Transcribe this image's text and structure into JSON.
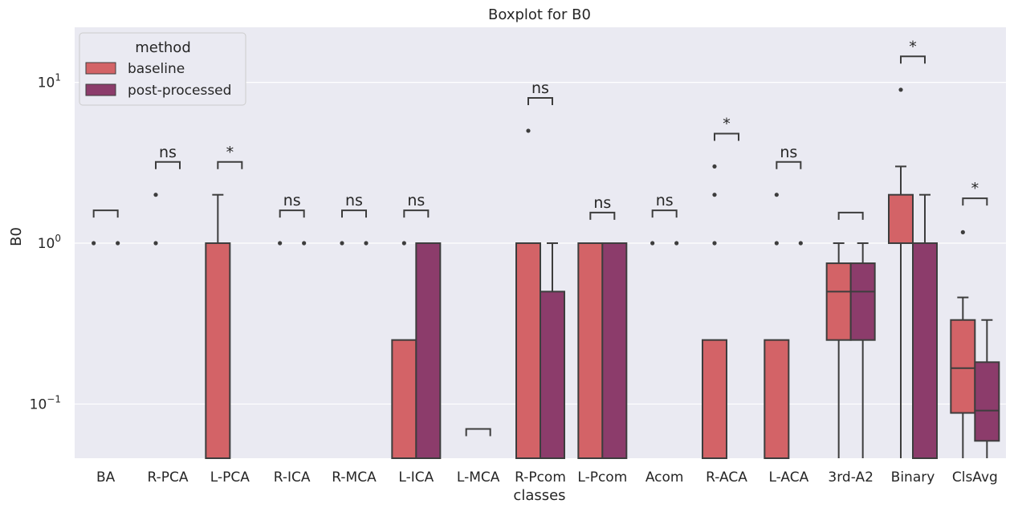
{
  "chart_data": {
    "type": "boxplot",
    "title": "Boxplot for B0",
    "xlabel": "classes",
    "ylabel": "B0",
    "yscale": "log",
    "ylim": [
      0.046,
      22
    ],
    "ytick_values": [
      0.1,
      1,
      10
    ],
    "ytick_bases": [
      "10",
      "10",
      "10"
    ],
    "ytick_exponents": [
      "−1",
      "0",
      "1"
    ],
    "grid": true,
    "legend": {
      "title": "method",
      "placement": "top-left",
      "entries": [
        "baseline",
        "post-processed"
      ]
    },
    "colors": {
      "baseline": "#d36367",
      "post-processed": "#8c3c6b",
      "background": "#eaeaf2",
      "grid": "#ffffff",
      "edge": "#3d3d3d"
    },
    "categories": [
      "BA",
      "R-PCA",
      "L-PCA",
      "R-ICA",
      "R-MCA",
      "L-ICA",
      "L-MCA",
      "R-Pcom",
      "L-Pcom",
      "Acom",
      "R-ACA",
      "L-ACA",
      "3rd-A2",
      "Binary",
      "ClsAvg"
    ],
    "series": [
      {
        "name": "baseline",
        "boxes": [
          {
            "fliers": [
              1
            ]
          },
          {
            "fliers": [
              1,
              2
            ]
          },
          {
            "q1": 0,
            "med": 0,
            "q3": 1,
            "wlo": 0,
            "whi": 2
          },
          {
            "fliers": [
              1
            ]
          },
          {
            "fliers": [
              1
            ]
          },
          {
            "q1": 0,
            "med": 0,
            "q3": 0.25,
            "wlo": 0,
            "whi": 0.25,
            "fliers": [
              1
            ]
          },
          {},
          {
            "q1": 0,
            "med": 0,
            "q3": 1,
            "wlo": 0,
            "whi": 1,
            "fliers": [
              5
            ]
          },
          {
            "q1": 0,
            "med": 1,
            "q3": 1,
            "wlo": 0,
            "whi": 1
          },
          {
            "fliers": [
              1
            ]
          },
          {
            "q1": 0,
            "med": 0,
            "q3": 0.25,
            "wlo": 0,
            "whi": 0.25,
            "fliers": [
              1,
              2,
              3
            ]
          },
          {
            "q1": 0,
            "med": 0,
            "q3": 0.25,
            "wlo": 0,
            "whi": 0.25,
            "fliers": [
              1,
              2
            ]
          },
          {
            "q1": 0.25,
            "med": 0.5,
            "q3": 0.75,
            "wlo": 0,
            "whi": 1
          },
          {
            "q1": 1,
            "med": 2,
            "q3": 2,
            "wlo": 0,
            "whi": 3,
            "fliers": [
              9
            ]
          },
          {
            "q1": 0.088,
            "med": 0.167,
            "q3": 0.333,
            "wlo": 0,
            "whi": 0.46,
            "fliers": [
              1.17
            ]
          }
        ]
      },
      {
        "name": "post-processed",
        "boxes": [
          {
            "fliers": [
              1
            ]
          },
          {},
          {},
          {
            "fliers": [
              1
            ]
          },
          {
            "fliers": [
              1
            ]
          },
          {
            "q1": 0,
            "med": 1,
            "q3": 1,
            "wlo": 0,
            "whi": 1
          },
          {},
          {
            "q1": 0,
            "med": 0,
            "q3": 0.5,
            "wlo": 0,
            "whi": 1
          },
          {
            "q1": 0,
            "med": 1,
            "q3": 1,
            "wlo": 0,
            "whi": 1
          },
          {
            "fliers": [
              1
            ]
          },
          {},
          {
            "fliers": [
              1
            ]
          },
          {
            "q1": 0.25,
            "med": 0.5,
            "q3": 0.75,
            "wlo": 0,
            "whi": 1
          },
          {
            "q1": 0,
            "med": 0,
            "q3": 1,
            "wlo": 0,
            "whi": 2
          },
          {
            "q1": 0.059,
            "med": 0.091,
            "q3": 0.182,
            "wlo": 0,
            "whi": 0.333
          }
        ]
      }
    ],
    "annotations": [
      {
        "category": "BA",
        "text": "",
        "y": 1.6
      },
      {
        "category": "R-PCA",
        "text": "ns",
        "y": 3.2
      },
      {
        "category": "L-PCA",
        "text": "*",
        "y": 3.2
      },
      {
        "category": "R-ICA",
        "text": "ns",
        "y": 1.6
      },
      {
        "category": "R-MCA",
        "text": "ns",
        "y": 1.6
      },
      {
        "category": "L-ICA",
        "text": "ns",
        "y": 1.6
      },
      {
        "category": "L-MCA",
        "text": "",
        "y": 0.07
      },
      {
        "category": "R-Pcom",
        "text": "ns",
        "y": 8.0
      },
      {
        "category": "L-Pcom",
        "text": "ns",
        "y": 1.55
      },
      {
        "category": "Acom",
        "text": "ns",
        "y": 1.6
      },
      {
        "category": "R-ACA",
        "text": "*",
        "y": 4.8
      },
      {
        "category": "L-ACA",
        "text": "ns",
        "y": 3.2
      },
      {
        "category": "3rd-A2",
        "text": "",
        "y": 1.55
      },
      {
        "category": "Binary",
        "text": "*",
        "y": 14.5
      },
      {
        "category": "ClsAvg",
        "text": "*",
        "y": 1.9
      }
    ]
  }
}
